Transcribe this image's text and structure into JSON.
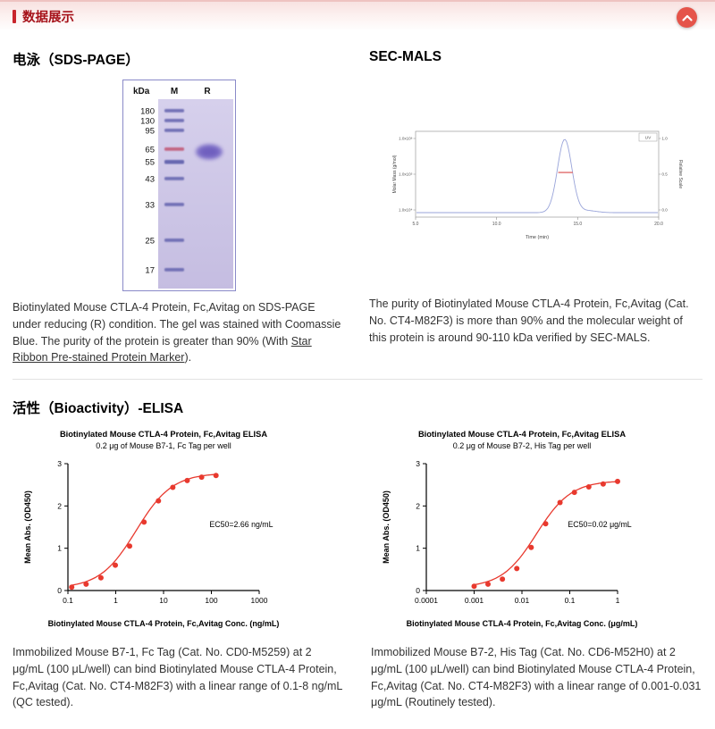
{
  "header": {
    "title": "数据展示",
    "scroll_top_icon": "chevron-up"
  },
  "sds_page": {
    "section_title": "电泳（SDS-PAGE）",
    "gel": {
      "unit_header": "kDa",
      "lane_headers": [
        "M",
        "R"
      ],
      "marker_labels": [
        "180",
        "130",
        "95",
        "65",
        "55",
        "43",
        "33",
        "25",
        "17"
      ]
    },
    "caption": {
      "before_link": "Biotinylated Mouse CTLA-4 Protein, Fc,Avitag on SDS-PAGE under reducing (R) condition. The gel was stained with Coomassie Blue. The purity of the protein is greater than 90% (With ",
      "link_text": "Star Ribbon Pre-stained Protein Marker",
      "after_link": ")."
    }
  },
  "sec_mals": {
    "section_title": "SEC-MALS",
    "caption": "The purity of Biotinylated Mouse CTLA-4 Protein, Fc,Avitag (Cat. No. CT4-M82F3) is more than 90% and the molecular weight of this protein is around 90-110 kDa verified by SEC-MALS."
  },
  "bioactivity": {
    "section_title": "活性（Bioactivity）-ELISA",
    "left_caption": "Immobilized Mouse B7-1, Fc Tag (Cat. No. CD0-M5259) at 2 μg/mL (100 μL/well) can bind Biotinylated Mouse CTLA-4 Protein, Fc,Avitag (Cat. No. CT4-M82F3) with a linear range of 0.1-8 ng/mL (QC tested).",
    "right_caption": "Immobilized Mouse B7-2, His Tag (Cat. No. CD6-M52H0) at 2 μg/mL (100 μL/well) can bind Biotinylated Mouse CTLA-4 Protein, Fc,Avitag (Cat. No. CT4-M82F3) with a linear range of 0.001-0.031 μg/mL (Routinely tested)."
  },
  "chart_data": [
    {
      "type": "scatter",
      "name": "elisa-mouse-b7-1",
      "title": "Biotinylated Mouse CTLA-4 Protein, Fc,Avitag ELISA",
      "subtitle": "0.2 μg of Mouse B7-1, Fc Tag per well",
      "xlabel": "Biotinylated Mouse CTLA-4 Protein, Fc,Avitag Conc. (ng/mL)",
      "ylabel": "Mean Abs. (OD450)",
      "x_scale": "log",
      "xlim": [
        0.1,
        1000
      ],
      "x_ticks": [
        "0.1",
        "1",
        "10",
        "100",
        "1000"
      ],
      "ylim": [
        0,
        3
      ],
      "y_ticks": [
        "0",
        "1",
        "2",
        "3"
      ],
      "x": [
        0.12,
        0.24,
        0.49,
        0.98,
        1.95,
        3.91,
        7.81,
        15.63,
        31.25,
        62.5,
        125
      ],
      "y": [
        0.08,
        0.15,
        0.3,
        0.6,
        1.05,
        1.62,
        2.12,
        2.44,
        2.6,
        2.68,
        2.72
      ],
      "annotation": "EC50=2.66 ng/mL",
      "fit_4pl": {
        "bottom": 0.05,
        "top": 2.78,
        "ec50": 2.66,
        "hill": 1.15
      },
      "point_color": "#e8392e",
      "curve_color": "#e8392e"
    },
    {
      "type": "scatter",
      "name": "elisa-mouse-b7-2",
      "title": "Biotinylated Mouse CTLA-4 Protein, Fc,Avitag ELISA",
      "subtitle": "0.2 μg of Mouse B7-2, His Tag per well",
      "xlabel": "Biotinylated Mouse CTLA-4 Protein, Fc,Avitag Conc. (μg/mL)",
      "ylabel": "Mean Abs. (OD450)",
      "x_scale": "log",
      "xlim": [
        0.0001,
        1
      ],
      "x_ticks": [
        "0.0001",
        "0.001",
        "0.01",
        "0.1",
        "1"
      ],
      "ylim": [
        0,
        3
      ],
      "y_ticks": [
        "0",
        "1",
        "2",
        "3"
      ],
      "x": [
        0.001,
        0.00195,
        0.0039,
        0.0078,
        0.0156,
        0.0313,
        0.0625,
        0.125,
        0.25,
        0.5,
        1
      ],
      "y": [
        0.1,
        0.15,
        0.27,
        0.52,
        1.02,
        1.58,
        2.08,
        2.32,
        2.45,
        2.52,
        2.58
      ],
      "annotation": "EC50=0.02 μg/mL",
      "fit_4pl": {
        "bottom": 0.07,
        "top": 2.6,
        "ec50": 0.02,
        "hill": 1.2
      },
      "point_color": "#e8392e",
      "curve_color": "#e8392e"
    },
    {
      "type": "line",
      "name": "sec-mals-chromatogram",
      "xlabel": "Time (min)",
      "ylabel_left": "Molar Mass (g/mol)",
      "ylabel_right": "Relative Scale",
      "xlim": [
        5.0,
        20.0
      ],
      "x_ticks": [
        "5.0",
        "10.0",
        "15.0",
        "20.0"
      ],
      "y_ticks_left": [
        "1.0x10⁶",
        "1.0x10⁵",
        "1.0x10⁴"
      ],
      "y_ticks_right": [
        "1.0",
        "0.5",
        "0.0"
      ],
      "legend": [
        "UV"
      ],
      "series": [
        {
          "name": "UV",
          "peak_center_min": 14.2,
          "peak_height_relative": 1.0,
          "baseline": 0.0
        }
      ],
      "molar_mass_overlay": {
        "time_range_min": [
          13.8,
          14.7
        ],
        "relative_level": 0.52
      },
      "line_color": "#98a3d9",
      "overlay_color": "#e06a6a"
    }
  ]
}
